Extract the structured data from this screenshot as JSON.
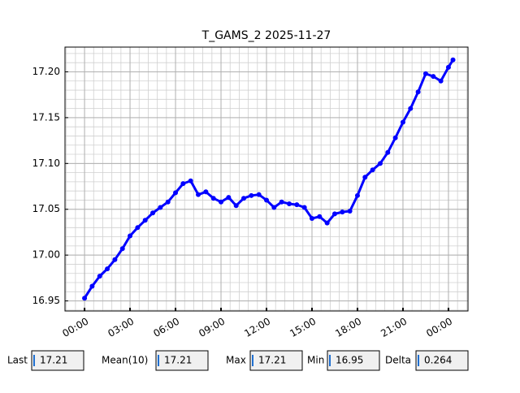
{
  "chart_data": {
    "type": "line",
    "title": "T_GAMS_2 2025-11-27",
    "x": [
      0,
      0.5,
      1,
      1.5,
      2,
      2.5,
      3,
      3.5,
      4,
      4.5,
      5,
      5.5,
      6,
      6.5,
      7,
      7.5,
      8,
      8.5,
      9,
      9.5,
      10,
      10.5,
      11,
      11.5,
      12,
      12.5,
      13,
      13.5,
      14,
      14.5,
      15,
      15.5,
      16,
      16.5,
      17,
      17.5,
      18,
      18.5,
      19,
      19.5,
      20,
      20.5,
      21,
      21.5,
      22,
      22.5,
      23,
      23.5,
      24,
      24.3
    ],
    "series": [
      {
        "color": "#0000ff",
        "values": [
          16.953,
          16.966,
          16.977,
          16.985,
          16.995,
          17.007,
          17.021,
          17.03,
          17.038,
          17.046,
          17.052,
          17.058,
          17.068,
          17.078,
          17.081,
          17.066,
          17.069,
          17.062,
          17.058,
          17.063,
          17.054,
          17.062,
          17.065,
          17.066,
          17.06,
          17.052,
          17.058,
          17.056,
          17.055,
          17.052,
          17.04,
          17.042,
          17.035,
          17.045,
          17.047,
          17.048,
          17.065,
          17.085,
          17.093,
          17.1,
          17.112,
          17.128,
          17.145,
          17.16,
          17.178,
          17.198,
          17.195,
          17.19,
          17.205,
          17.213
        ]
      }
    ],
    "xlim": [
      -1.29,
      25.29
    ],
    "xticks": [
      {
        "value": 0,
        "label": "00:00"
      },
      {
        "value": 3,
        "label": "03:00"
      },
      {
        "value": 6,
        "label": "06:00"
      },
      {
        "value": 9,
        "label": "09:00"
      },
      {
        "value": 12,
        "label": "12:00"
      },
      {
        "value": 15,
        "label": "15:00"
      },
      {
        "value": 18,
        "label": "18:00"
      },
      {
        "value": 21,
        "label": "21:00"
      },
      {
        "value": 24,
        "label": "00:00"
      }
    ],
    "ylim": [
      16.939,
      17.227
    ],
    "yticks": [
      16.95,
      {
        "value": 17,
        "label": "17.00"
      },
      17.05,
      {
        "value": 17.1,
        "label": "17.10"
      },
      17.15,
      {
        "value": 17.2,
        "label": "17.20"
      }
    ],
    "grid": true,
    "minor_grid": true
  },
  "controls": [
    {
      "label": "Last",
      "value": 17.21
    },
    {
      "label": "Mean(10)",
      "value": 17.21
    },
    {
      "label": "Max",
      "value": 17.21
    },
    {
      "label": "Min",
      "value": 16.95
    },
    {
      "label": "Delta",
      "value": 0.264
    }
  ]
}
